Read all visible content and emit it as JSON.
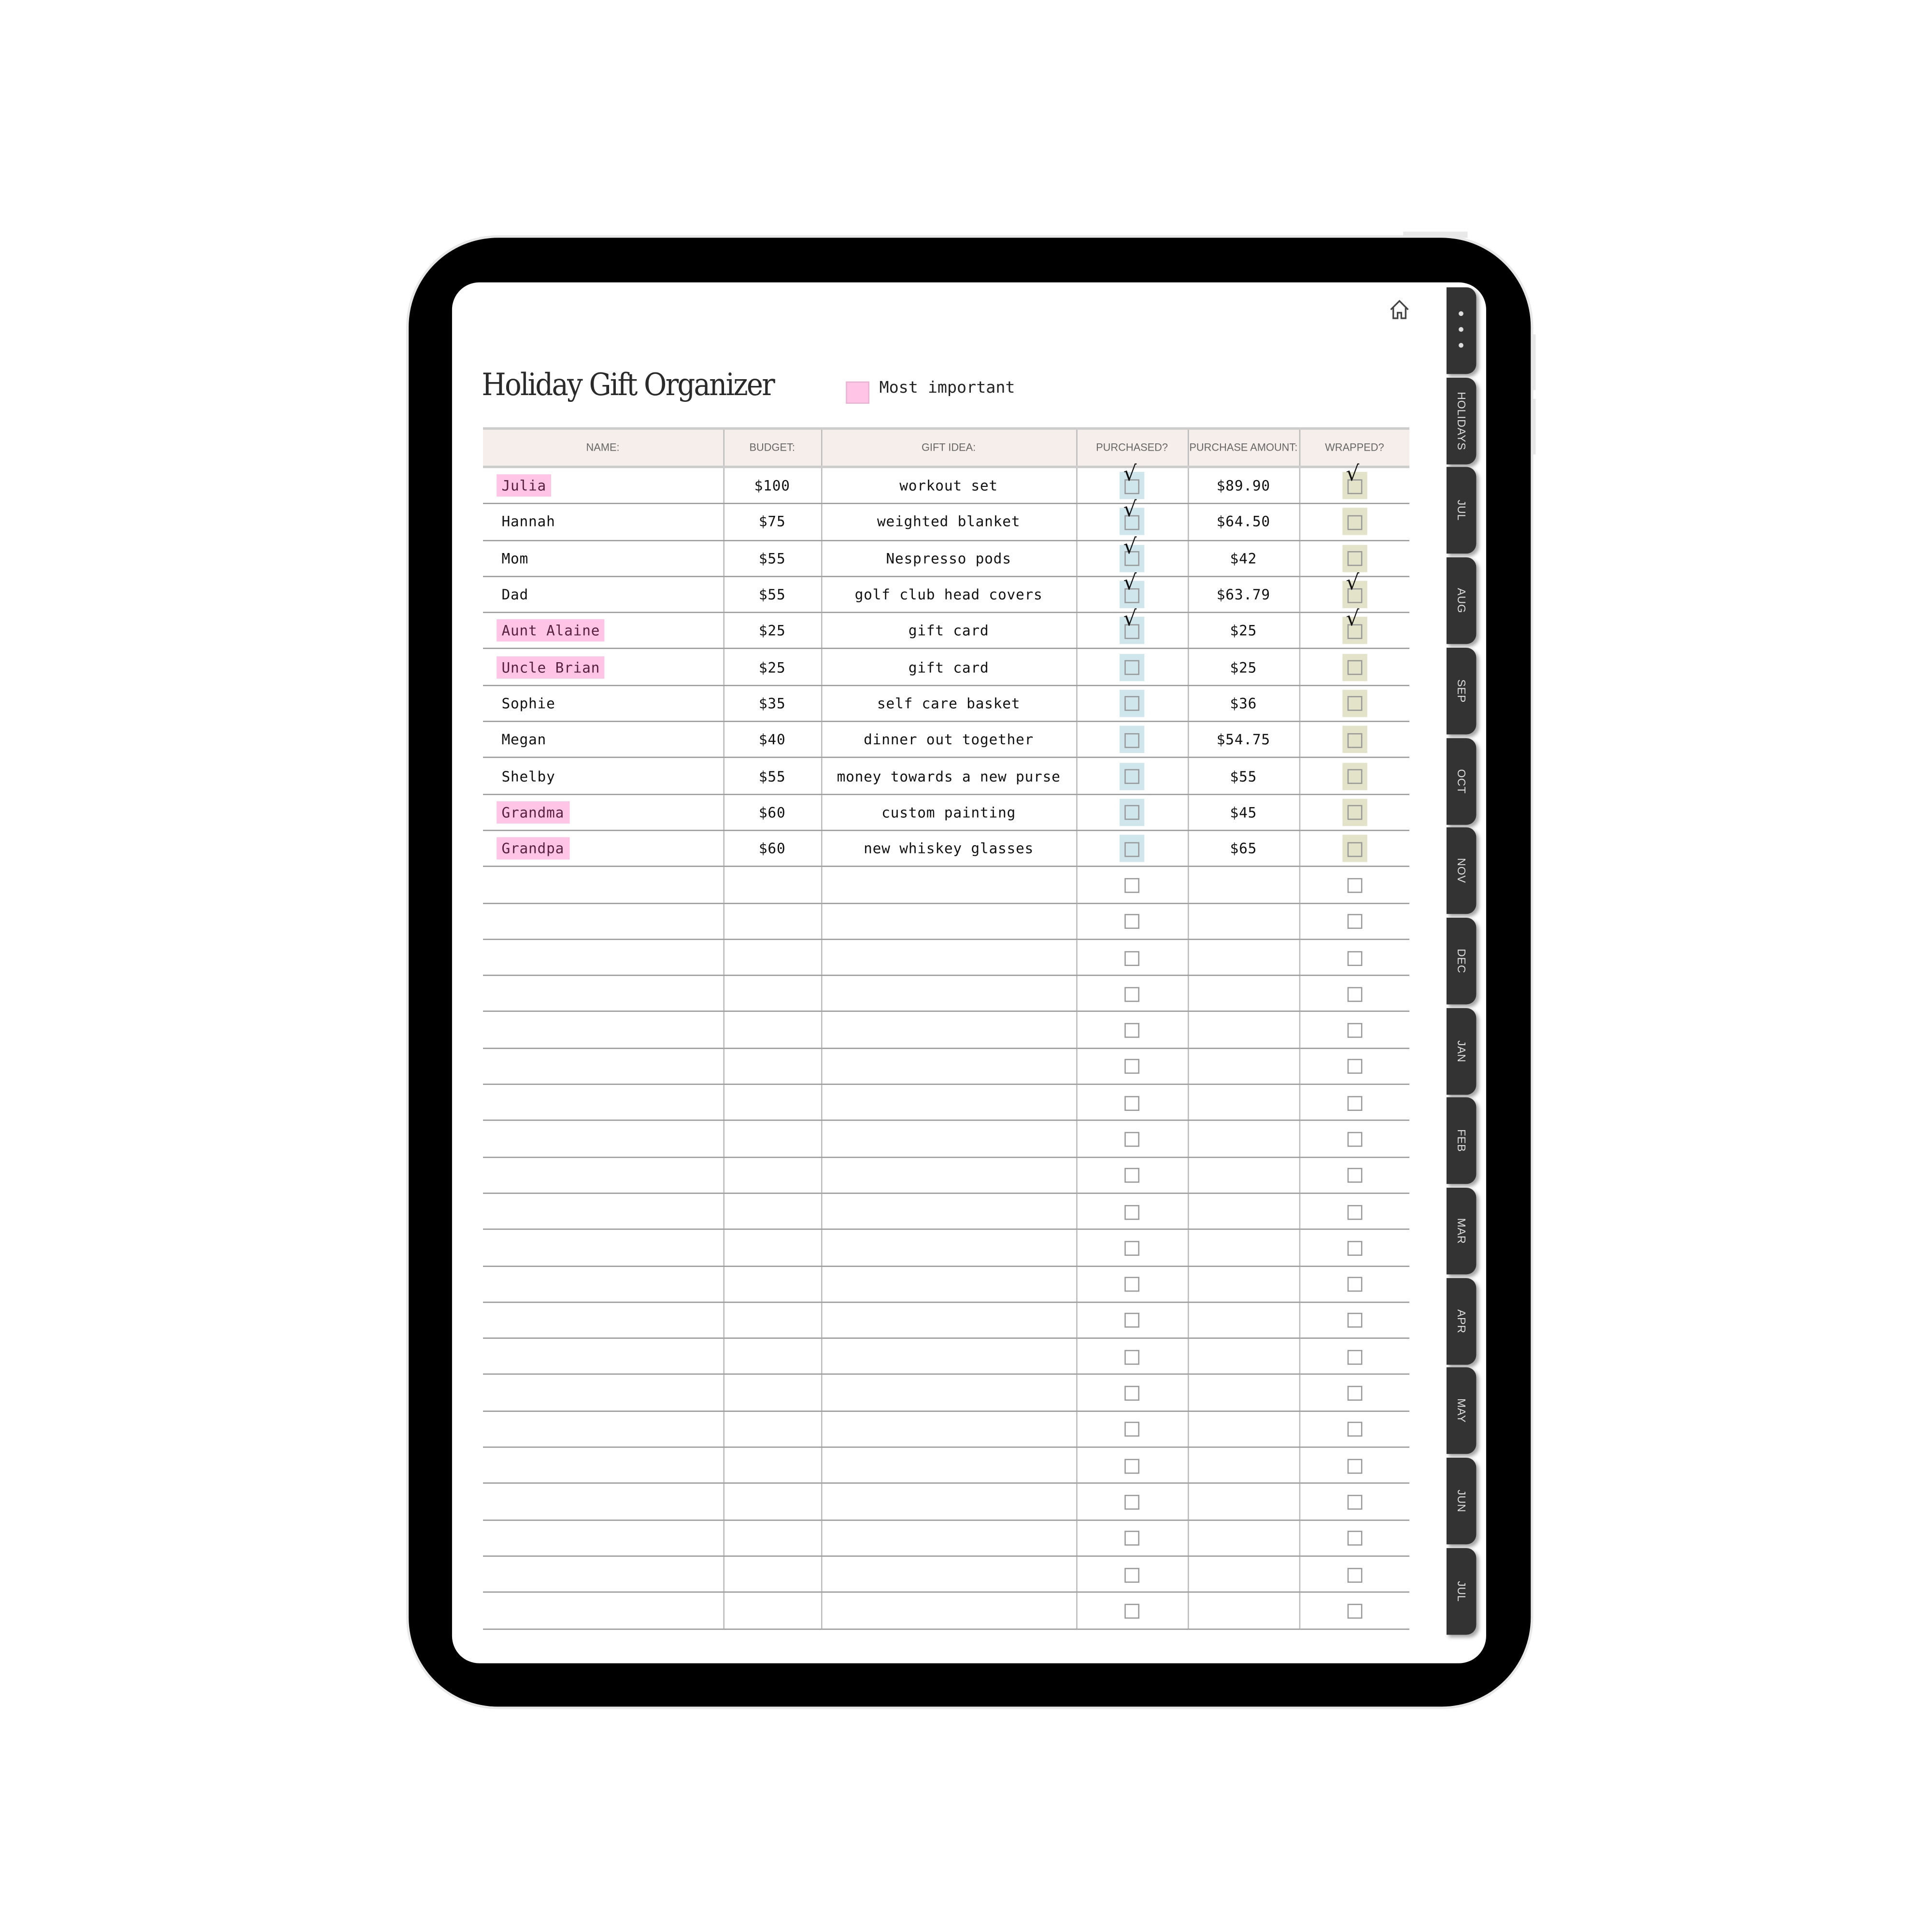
{
  "title": "Holiday Gift Organizer",
  "legend": {
    "label": "Most important",
    "color": "#ffc4e6"
  },
  "icons": {
    "home": "home-icon",
    "more": "more-dots-icon",
    "check": "checkmark-icon"
  },
  "colors": {
    "header_bg": "#f5eeeb",
    "highlight": "#ffc4e6",
    "purchased_box": "#cfe6ec",
    "wrapped_box": "#e2e3c8",
    "tab": "#333333"
  },
  "columns": [
    "NAME:",
    "BUDGET:",
    "GIFT IDEA:",
    "PURCHASED?",
    "PURCHASE AMOUNT:",
    "WRAPPED?"
  ],
  "rows": [
    {
      "name": "Julia",
      "important": true,
      "budget": "$100",
      "gift": "workout set",
      "purchased": true,
      "amount": "$89.90",
      "wrapped": true
    },
    {
      "name": "Hannah",
      "important": false,
      "budget": "$75",
      "gift": "weighted blanket",
      "purchased": true,
      "amount": "$64.50",
      "wrapped": false
    },
    {
      "name": "Mom",
      "important": false,
      "budget": "$55",
      "gift": "Nespresso pods",
      "purchased": true,
      "amount": "$42",
      "wrapped": false
    },
    {
      "name": "Dad",
      "important": false,
      "budget": "$55",
      "gift": "golf club head covers",
      "purchased": true,
      "amount": "$63.79",
      "wrapped": true
    },
    {
      "name": "Aunt Alaine",
      "important": true,
      "budget": "$25",
      "gift": "gift card",
      "purchased": true,
      "amount": "$25",
      "wrapped": true
    },
    {
      "name": "Uncle Brian",
      "important": true,
      "budget": "$25",
      "gift": "gift card",
      "purchased": false,
      "amount": "$25",
      "wrapped": false
    },
    {
      "name": "Sophie",
      "important": false,
      "budget": "$35",
      "gift": "self care basket",
      "purchased": false,
      "amount": "$36",
      "wrapped": false
    },
    {
      "name": "Megan",
      "important": false,
      "budget": "$40",
      "gift": "dinner out together",
      "purchased": false,
      "amount": "$54.75",
      "wrapped": false
    },
    {
      "name": "Shelby",
      "important": false,
      "budget": "$55",
      "gift": "money towards a new purse",
      "purchased": false,
      "amount": "$55",
      "wrapped": false
    },
    {
      "name": "Grandma",
      "important": true,
      "budget": "$60",
      "gift": "custom painting",
      "purchased": false,
      "amount": "$45",
      "wrapped": false
    },
    {
      "name": "Grandpa",
      "important": true,
      "budget": "$60",
      "gift": "new whiskey glasses",
      "purchased": false,
      "amount": "$65",
      "wrapped": false
    }
  ],
  "empty_rows": 21,
  "tabs": [
    "• • •",
    "HOLIDAYS",
    "JUL",
    "AUG",
    "SEP",
    "OCT",
    "NOV",
    "DEC",
    "JAN",
    "FEB",
    "MAR",
    "APR",
    "MAY",
    "JUN",
    "JUL"
  ]
}
